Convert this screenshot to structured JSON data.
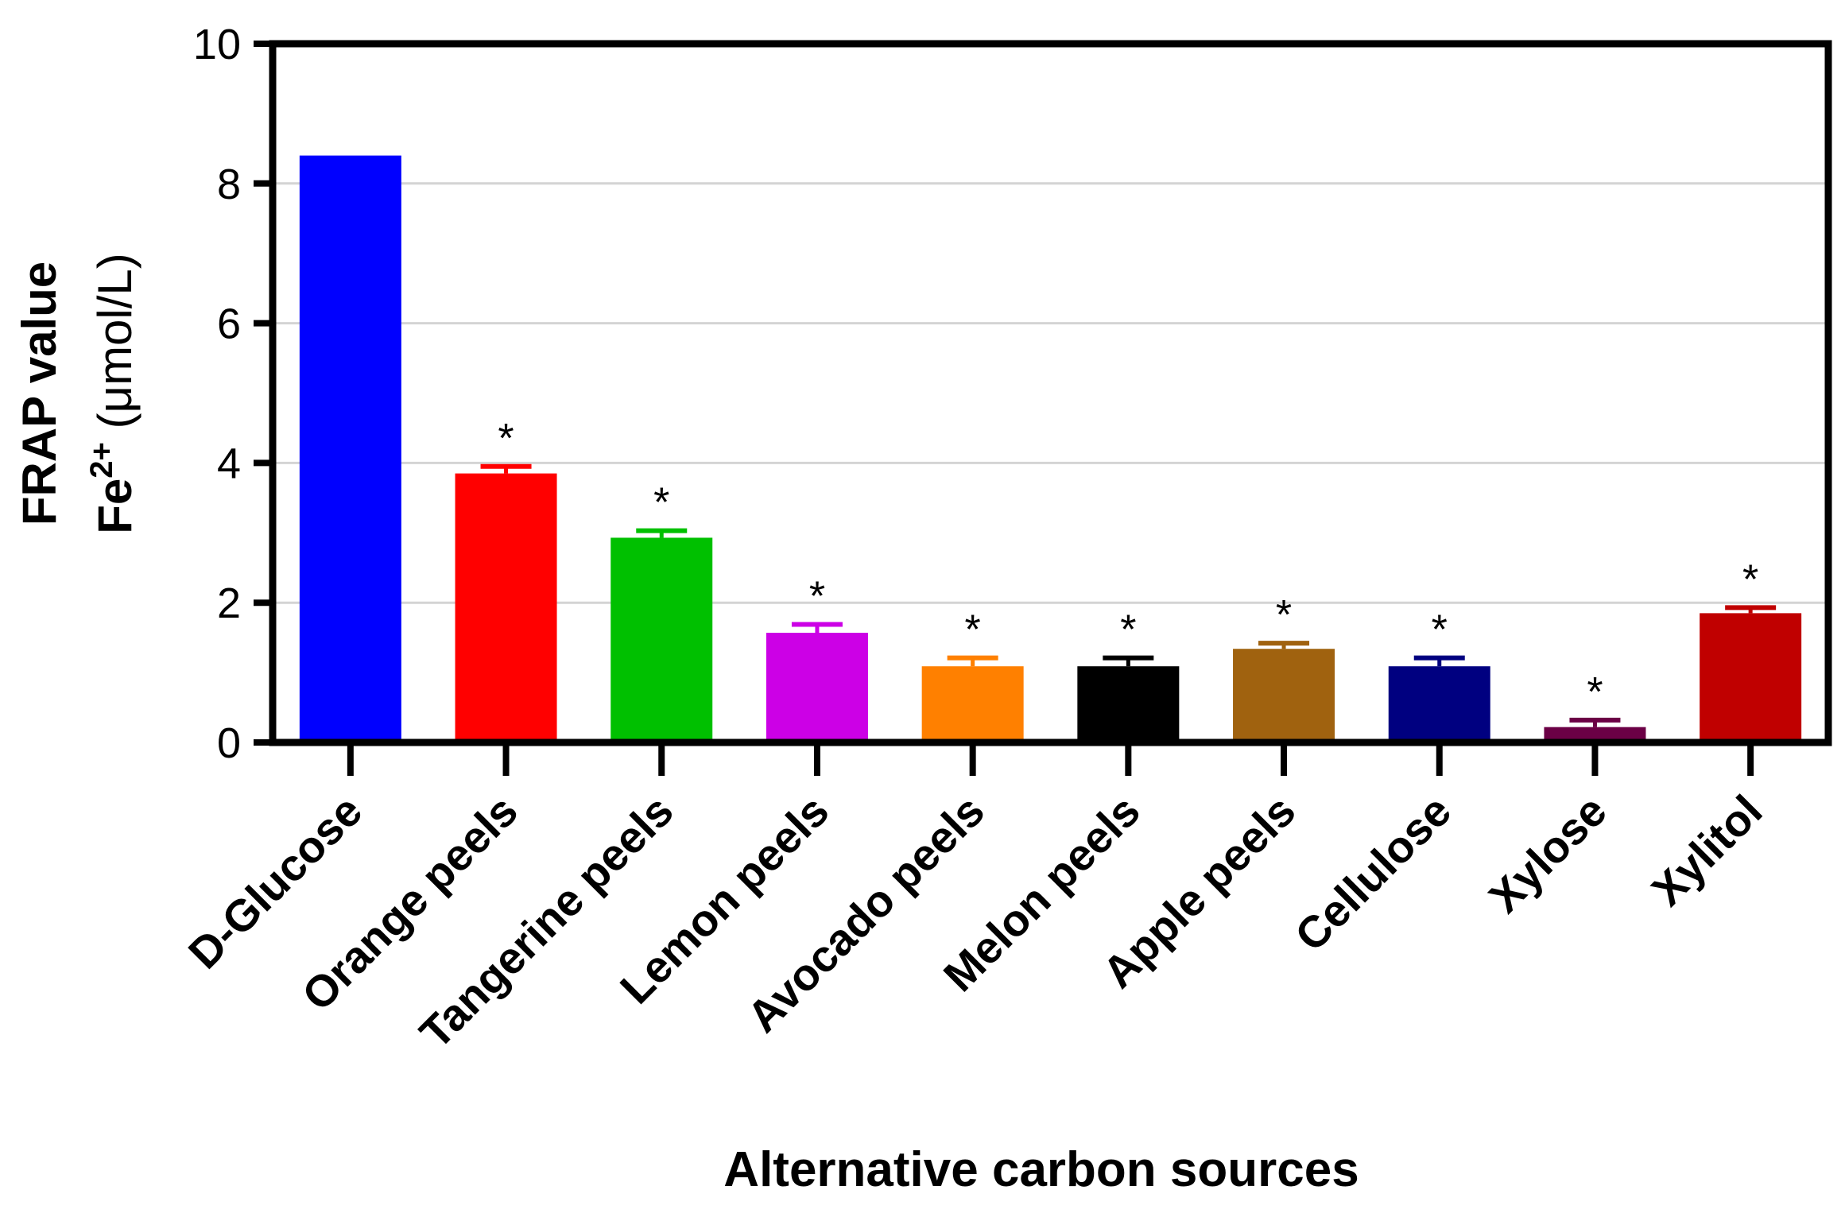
{
  "chart_data": {
    "type": "bar",
    "categories": [
      "D-Glucose",
      "Orange peels",
      "Tangerine peels",
      "Lemon peels",
      "Avocado peels",
      "Melon peels",
      "Apple peels",
      "Cellulose",
      "Xylose",
      "Xylitol"
    ],
    "values": [
      8.4,
      3.85,
      2.93,
      1.57,
      1.09,
      1.09,
      1.34,
      1.09,
      0.22,
      1.85
    ],
    "errors": [
      0,
      0.1,
      0.1,
      0.12,
      0.12,
      0.12,
      0.08,
      0.12,
      0.1,
      0.08
    ],
    "significance": [
      "",
      "*",
      "*",
      "*",
      "*",
      "*",
      "*",
      "*",
      "*",
      "*"
    ],
    "colors": [
      "#0000ff",
      "#ff0000",
      "#00c000",
      "#cc00e6",
      "#ff8000",
      "#000000",
      "#a0620f",
      "#000080",
      "#6b0045",
      "#c00000"
    ],
    "xlabel": "Alternative carbon sources",
    "ylabel_line1": "FRAP value",
    "ylabel_line2_prefix": "Fe",
    "ylabel_line2_sup": "2+",
    "ylabel_line2_suffix": " (μmol/L)",
    "ylim": [
      0,
      10
    ],
    "yticks": [
      0,
      2,
      4,
      6,
      8,
      10
    ],
    "grid": true
  }
}
